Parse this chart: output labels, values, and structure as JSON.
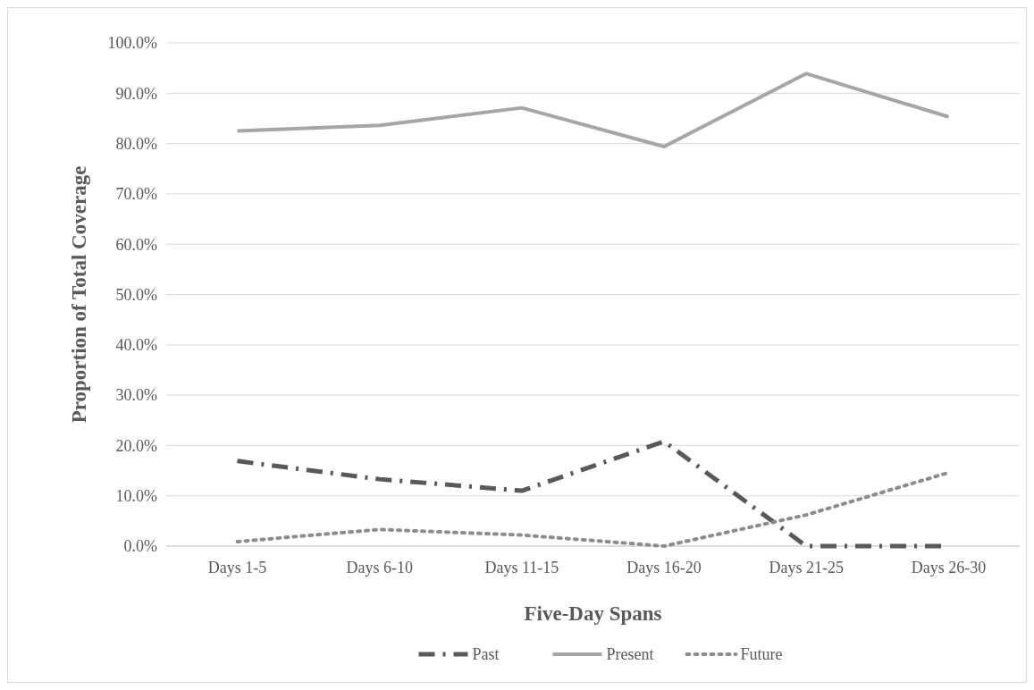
{
  "chart_data": {
    "type": "line",
    "xlabel": "Five-Day Spans",
    "ylabel": "Proportion of Total Coverage",
    "categories": [
      "Days 1-5",
      "Days 6-10",
      "Days 11-15",
      "Days 16-20",
      "Days 21-25",
      "Days 26-30"
    ],
    "series": [
      {
        "name": "Past",
        "color": "#595959",
        "line_style": "dashed",
        "values": [
          16.9,
          13.3,
          11.0,
          20.8,
          0,
          0
        ]
      },
      {
        "name": "Present",
        "color": "#a6a6a6",
        "line_style": "solid",
        "values": [
          82.5,
          83.6,
          87.1,
          79.4,
          93.9,
          85.3
        ]
      },
      {
        "name": "Future",
        "color": "#8c8c8c",
        "line_style": "dotted",
        "values": [
          0.9,
          3.3,
          2.2,
          0,
          6.2,
          14.6
        ]
      }
    ],
    "ylim": [
      0,
      100
    ],
    "yticks": [
      {
        "value": 0,
        "label": "0.0%"
      },
      {
        "value": 10,
        "label": "10.0%"
      },
      {
        "value": 20,
        "label": "20.0%"
      },
      {
        "value": 30,
        "label": "30.0%"
      },
      {
        "value": 40,
        "label": "40.0%"
      },
      {
        "value": 50,
        "label": "50.0%"
      },
      {
        "value": 60,
        "label": "60.0%"
      },
      {
        "value": 70,
        "label": "70.0%"
      },
      {
        "value": 80,
        "label": "80.0%"
      },
      {
        "value": 90,
        "label": "90.0%"
      },
      {
        "value": 100,
        "label": "100.0%"
      }
    ],
    "grid": "y",
    "legend": "bottom",
    "marker": "none"
  }
}
